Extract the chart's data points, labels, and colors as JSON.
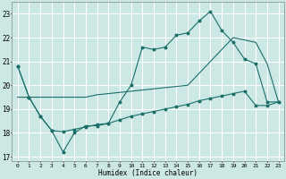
{
  "title": "",
  "xlabel": "Humidex (Indice chaleur)",
  "bg_color": "#cce8e4",
  "grid_color": "#ffffff",
  "line_color": "#1a6e6a",
  "xlim": [
    -0.5,
    23.5
  ],
  "ylim": [
    16.8,
    23.5
  ],
  "xticks": [
    0,
    1,
    2,
    3,
    4,
    5,
    6,
    7,
    8,
    9,
    10,
    11,
    12,
    13,
    14,
    15,
    16,
    17,
    18,
    19,
    20,
    21,
    22,
    23
  ],
  "yticks": [
    17,
    18,
    19,
    20,
    21,
    22,
    23
  ],
  "line1_x": [
    0,
    1,
    2,
    3,
    4,
    5,
    6,
    7,
    8,
    9,
    10,
    11,
    12,
    13,
    14,
    15,
    16,
    17,
    18,
    19,
    20,
    21,
    22,
    23
  ],
  "line1_y": [
    20.8,
    19.5,
    18.7,
    18.1,
    17.2,
    18.0,
    18.3,
    18.3,
    18.4,
    19.3,
    20.0,
    21.6,
    21.5,
    21.6,
    22.1,
    22.2,
    22.7,
    23.1,
    22.3,
    21.8,
    21.1,
    20.9,
    19.3,
    19.3
  ],
  "line2_x": [
    0,
    1,
    2,
    3,
    4,
    5,
    6,
    7,
    8,
    9,
    10,
    11,
    12,
    13,
    14,
    15,
    16,
    17,
    18,
    19,
    20,
    21,
    22,
    23
  ],
  "line2_y": [
    20.8,
    19.5,
    18.7,
    18.1,
    18.05,
    18.15,
    18.25,
    18.35,
    18.4,
    18.55,
    18.7,
    18.8,
    18.9,
    19.0,
    19.1,
    19.2,
    19.35,
    19.45,
    19.55,
    19.65,
    19.75,
    19.15,
    19.15,
    19.3
  ],
  "line3_x": [
    0,
    1,
    2,
    3,
    4,
    5,
    6,
    7,
    8,
    9,
    10,
    11,
    12,
    13,
    14,
    15,
    16,
    17,
    18,
    19,
    20,
    21,
    22,
    23
  ],
  "line3_y": [
    19.5,
    19.5,
    19.5,
    19.5,
    19.5,
    19.5,
    19.5,
    19.6,
    19.65,
    19.7,
    19.75,
    19.8,
    19.85,
    19.9,
    19.95,
    20.0,
    20.5,
    21.0,
    21.5,
    22.0,
    21.9,
    21.8,
    20.9,
    19.3
  ]
}
